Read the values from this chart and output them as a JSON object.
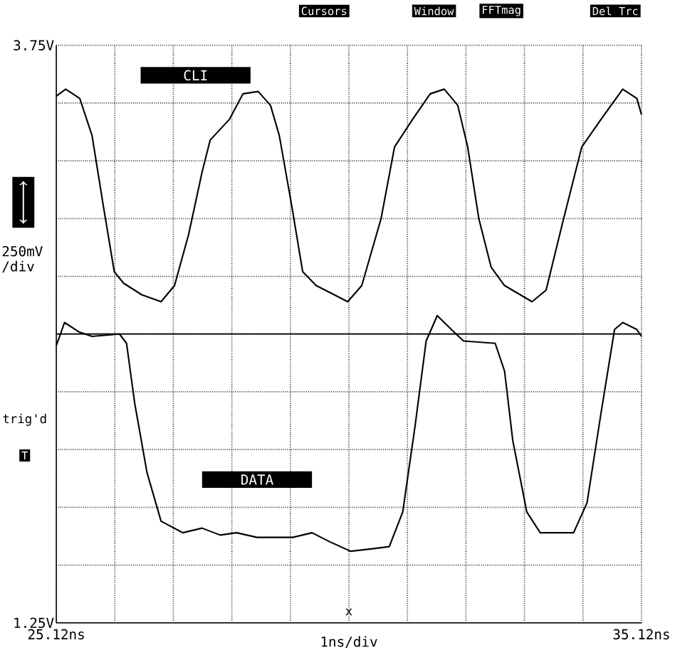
{
  "chart_data": {
    "type": "line",
    "xlabel": "1ns/div",
    "ylabel": "250mV /div",
    "xlim": [
      25.12,
      35.12
    ],
    "xticks": [
      {
        "value": 25.12,
        "label": "25.12ns"
      },
      {
        "value": 26.12,
        "label": null
      },
      {
        "value": 27.12,
        "label": null
      },
      {
        "value": 28.12,
        "label": null
      },
      {
        "value": 29.12,
        "label": null
      },
      {
        "value": 30.12,
        "label": null
      },
      {
        "value": 31.12,
        "label": null
      },
      {
        "value": 32.12,
        "label": null
      },
      {
        "value": 33.12,
        "label": null
      },
      {
        "value": 34.12,
        "label": null
      },
      {
        "value": 35.12,
        "label": "35.12ns"
      }
    ],
    "ylim": [
      1.25,
      3.75
    ],
    "yticks": [
      {
        "value": 1.25,
        "label": "1.25V"
      },
      {
        "value": 1.5,
        "label": null
      },
      {
        "value": 1.75,
        "label": null
      },
      {
        "value": 2.0,
        "label": null
      },
      {
        "value": 2.25,
        "label": null
      },
      {
        "value": 2.5,
        "label": null
      },
      {
        "value": 2.75,
        "label": null
      },
      {
        "value": 3.0,
        "label": null
      },
      {
        "value": 3.25,
        "label": null
      },
      {
        "value": 3.5,
        "label": null
      },
      {
        "value": 3.75,
        "label": "3.75V"
      }
    ],
    "grid": true,
    "marker": "none",
    "line_style": "solid",
    "ref_lines": [
      {
        "axis": "y",
        "value": 2.5,
        "color": "#000000",
        "line_style": "solid"
      }
    ],
    "annotations": [
      "Cursors",
      "Window",
      "FFTmag",
      "Del Trc",
      "trig'd",
      "T",
      "x"
    ],
    "series": [
      {
        "name": "CLI",
        "color": "#000000",
        "x": [
          25.12,
          25.28,
          25.52,
          25.73,
          25.92,
          26.11,
          26.27,
          26.58,
          26.91,
          27.14,
          27.38,
          27.61,
          27.75,
          28.08,
          28.31,
          28.57,
          28.78,
          28.93,
          29.14,
          29.33,
          29.56,
          29.87,
          30.1,
          30.34,
          30.67,
          30.9,
          31.21,
          31.51,
          31.75,
          31.98,
          32.15,
          32.34,
          32.55,
          32.78,
          33.25,
          33.49,
          33.79,
          34.1,
          34.43,
          34.8,
          35.04,
          35.12
        ],
        "values": [
          3.53,
          3.56,
          3.52,
          3.36,
          3.06,
          2.77,
          2.72,
          2.67,
          2.64,
          2.71,
          2.93,
          3.2,
          3.34,
          3.43,
          3.54,
          3.55,
          3.49,
          3.36,
          3.06,
          2.77,
          2.71,
          2.67,
          2.64,
          2.71,
          3.0,
          3.31,
          3.43,
          3.54,
          3.56,
          3.49,
          3.31,
          3.0,
          2.79,
          2.71,
          2.64,
          2.69,
          3.0,
          3.31,
          3.43,
          3.56,
          3.52,
          3.45
        ]
      },
      {
        "name": "DATA",
        "color": "#000000",
        "x": [
          25.12,
          25.26,
          25.5,
          25.73,
          26.2,
          26.32,
          26.46,
          26.67,
          26.91,
          27.28,
          27.61,
          27.92,
          28.2,
          28.55,
          29.16,
          29.49,
          29.8,
          30.15,
          30.5,
          30.81,
          31.04,
          31.25,
          31.44,
          31.63,
          31.87,
          32.08,
          32.62,
          32.78,
          32.92,
          33.16,
          33.39,
          33.96,
          34.19,
          34.43,
          34.66,
          34.8,
          35.04,
          35.12
        ],
        "values": [
          2.45,
          2.55,
          2.51,
          2.49,
          2.5,
          2.46,
          2.2,
          1.9,
          1.69,
          1.64,
          1.66,
          1.63,
          1.64,
          1.62,
          1.62,
          1.64,
          1.6,
          1.56,
          1.57,
          1.58,
          1.73,
          2.1,
          2.47,
          2.58,
          2.52,
          2.47,
          2.46,
          2.34,
          2.04,
          1.73,
          1.64,
          1.64,
          1.77,
          2.16,
          2.52,
          2.55,
          2.52,
          2.49
        ]
      }
    ]
  }
}
